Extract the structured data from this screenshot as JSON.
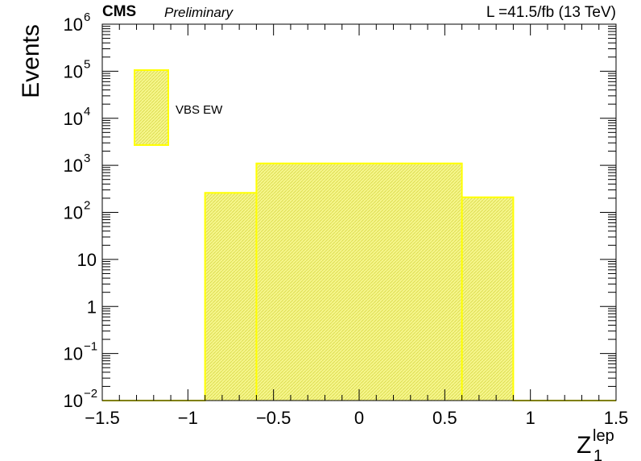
{
  "header": {
    "experiment": "CMS",
    "status": "Preliminary",
    "lumi": "L =41.5/fb (13 TeV)"
  },
  "colors": {
    "fill": "#f6f68c",
    "line": "#ffff00",
    "hatch": "#d9d94a",
    "axis": "#000000"
  },
  "chart_data": {
    "type": "bar",
    "histogram": true,
    "xlabel": "Z",
    "xlabel_subscript": "1",
    "xlabel_superscript": "lep",
    "ylabel": "Events",
    "xlim": [
      -1.5,
      1.5
    ],
    "ylim": [
      0.01,
      1000000
    ],
    "yscale": "log",
    "x_ticks": [
      -1.5,
      -1,
      -0.5,
      0,
      0.5,
      1,
      1.5
    ],
    "x_tick_labels": [
      "−1.5",
      "−1",
      "−0.5",
      "0",
      "0.5",
      "1",
      "1.5"
    ],
    "y_ticks": [
      0.01,
      0.1,
      1,
      10,
      100,
      1000,
      10000,
      100000,
      1000000
    ],
    "y_tick_labels": [
      {
        "base": "10",
        "exp": "−2"
      },
      {
        "base": "10",
        "exp": "−1"
      },
      {
        "base": "1",
        "exp": ""
      },
      {
        "base": "10",
        "exp": ""
      },
      {
        "base": "10",
        "exp": "2"
      },
      {
        "base": "10",
        "exp": "3"
      },
      {
        "base": "10",
        "exp": "4"
      },
      {
        "base": "10",
        "exp": "5"
      },
      {
        "base": "10",
        "exp": "6"
      }
    ],
    "grid": false,
    "legend_position": "top-left",
    "series": [
      {
        "name": "VBS EW",
        "bins": [
          {
            "x0": -0.9,
            "x1": -0.6,
            "value": 260
          },
          {
            "x0": -0.6,
            "x1": 0.6,
            "value": 1100
          },
          {
            "x0": 0.6,
            "x1": 0.9,
            "value": 210
          }
        ]
      }
    ]
  }
}
